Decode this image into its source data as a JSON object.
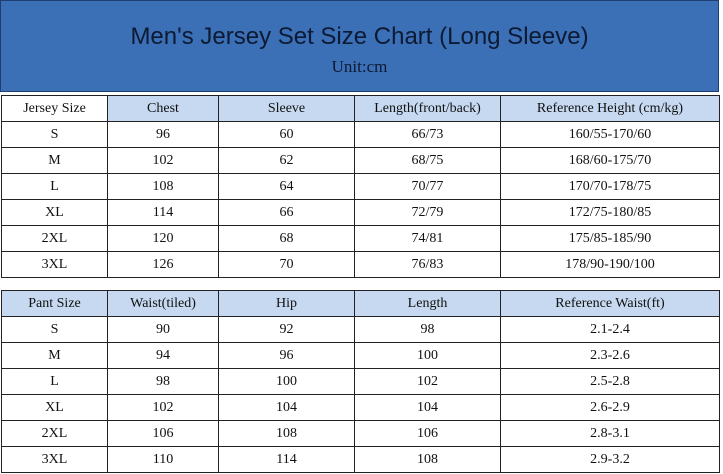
{
  "header": {
    "title": "Men's Jersey Set Size Chart (Long Sleeve)",
    "subtitle": "Unit:cm"
  },
  "jersey_table": {
    "columns": [
      "Jersey  Size",
      "Chest",
      "Sleeve",
      "Length(front/back)",
      "Reference Height (cm/kg)"
    ],
    "rows": [
      [
        "S",
        "96",
        "60",
        "66/73",
        "160/55-170/60"
      ],
      [
        "M",
        "102",
        "62",
        "68/75",
        "168/60-175/70"
      ],
      [
        "L",
        "108",
        "64",
        "70/77",
        "170/70-178/75"
      ],
      [
        "XL",
        "114",
        "66",
        "72/79",
        "172/75-180/85"
      ],
      [
        "2XL",
        "120",
        "68",
        "74/81",
        "175/85-185/90"
      ],
      [
        "3XL",
        "126",
        "70",
        "76/83",
        "178/90-190/100"
      ]
    ]
  },
  "pant_table": {
    "columns": [
      "Pant Size",
      "Waist(tiled)",
      "Hip",
      "Length",
      "Reference Waist(ft)"
    ],
    "rows": [
      [
        "S",
        "90",
        "92",
        "98",
        "2.1-2.4"
      ],
      [
        "M",
        "94",
        "96",
        "100",
        "2.3-2.6"
      ],
      [
        "L",
        "98",
        "100",
        "102",
        "2.5-2.8"
      ],
      [
        "XL",
        "102",
        "104",
        "104",
        "2.6-2.9"
      ],
      [
        "2XL",
        "106",
        "108",
        "106",
        "2.8-3.1"
      ],
      [
        "3XL",
        "110",
        "114",
        "108",
        "2.9-3.2"
      ]
    ]
  }
}
